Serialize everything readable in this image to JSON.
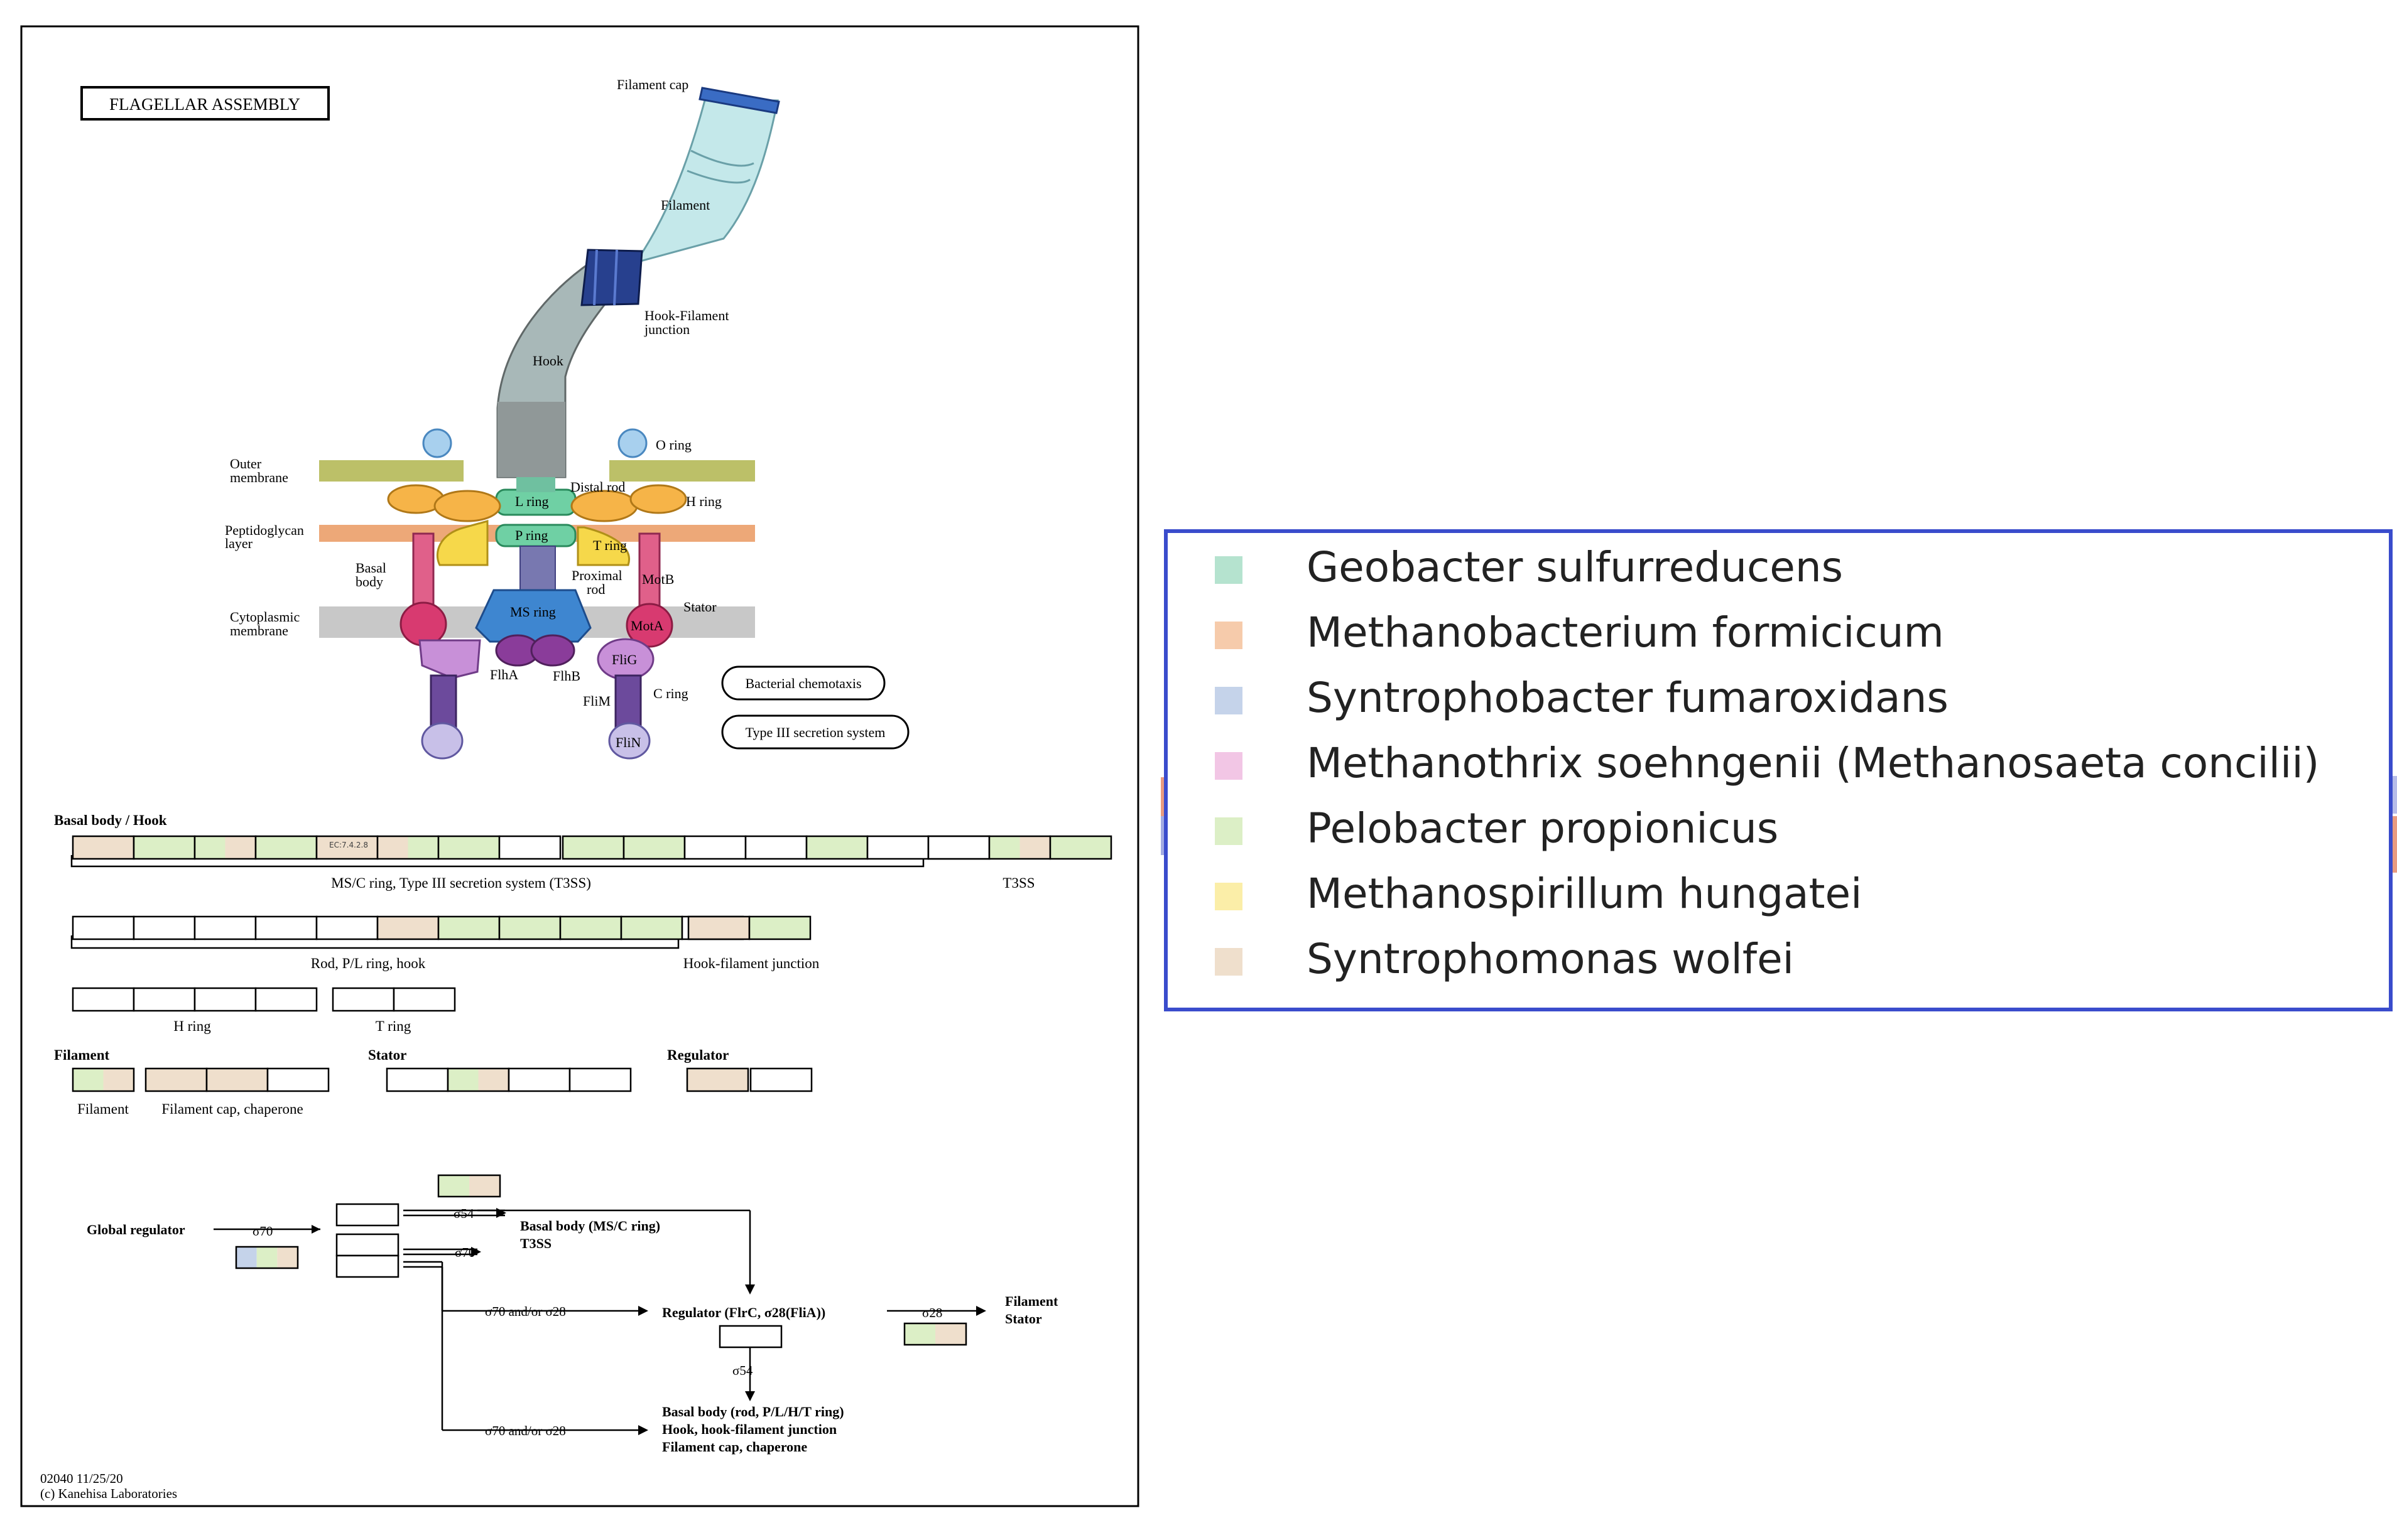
{
  "colors": {
    "geobacter": "#b5e3cf",
    "methanobacterium": "#f6cbab",
    "syntrophobacter": "#c5d3ea",
    "methanothrix": "#f2c6e5",
    "pelobacter": "#dcefc6",
    "methanospirillum": "#fbeea8",
    "syntrophomonas": "#efdfcc",
    "stripe_blue": "#4858c8",
    "stripe_red": "#e0704a"
  },
  "diagram": {
    "title": "FLAGELLAR ASSEMBLY",
    "structure_labels": {
      "filament_cap": "Filament cap",
      "filament": "Filament",
      "hook_filament_junction_1": "Hook-Filament",
      "hook_filament_junction_2": "junction",
      "hook": "Hook",
      "o_ring": "O ring",
      "outer_membrane_1": "Outer",
      "outer_membrane_2": "membrane",
      "distal_rod": "Distal rod",
      "l_ring": "L ring",
      "h_ring": "H ring",
      "peptidoglycan_1": "Peptidoglycan",
      "peptidoglycan_2": "layer",
      "p_ring": "P ring",
      "t_ring": "T ring",
      "basal_body_1": "Basal",
      "basal_body_2": "body",
      "proximal_rod_1": "Proximal",
      "proximal_rod_2": "rod",
      "motb": "MotB",
      "cytoplasmic_1": "Cytoplasmic",
      "cytoplasmic_2": "membrane",
      "ms_ring": "MS ring",
      "stator": "Stator",
      "mota": "MotA",
      "flha": "FlhA",
      "flhb": "FlhB",
      "flig": "FliG",
      "flim": "FliM",
      "c_ring": "C ring",
      "flin": "FliN"
    },
    "pathway_links": [
      "Bacterial chemotaxis",
      "Type III secretion system"
    ],
    "sections": {
      "basal_body_hook": "Basal body / Hook",
      "filament": "Filament",
      "stator": "Stator",
      "regulator": "Regulator"
    },
    "group_labels": {
      "msc_ring": "MS/C ring, Type III secretion system (T3SS)",
      "t3ss": "T3SS",
      "rod_pl": "Rod, P/L ring, hook",
      "hook_filament_junction": "Hook-filament junction",
      "h_ring": "H ring",
      "t_ring": "T ring",
      "filament": "Filament",
      "filament_cap": "Filament cap, chaperone"
    },
    "ec_label": "EC:7.4.2.8",
    "regulation": {
      "global_regulator": "Global regulator",
      "sigma70": "σ70",
      "sigma54": "σ54",
      "sigma28": "σ28",
      "sigma70_or_28": "σ70 and/or σ28",
      "basal_msc_1": "Basal body (MS/C ring)",
      "basal_msc_2": "T3SS",
      "regulator_line": "Regulator (FlrC, σ28(FliA))",
      "filament_stator_1": "Filament",
      "filament_stator_2": "Stator",
      "basal_rod_1": "Basal body (rod, P/L/H/T ring)",
      "basal_rod_2": "Hook, hook-filament junction",
      "basal_rod_3": "Filament cap, chaperone"
    },
    "footer_1": "02040 11/25/20",
    "footer_2": "(c) Kanehisa Laboratories"
  },
  "legend": {
    "items": [
      {
        "label": "Geobacter sulfurreducens",
        "color": "#b5e3cf"
      },
      {
        "label": "Methanobacterium formicicum",
        "color": "#f6cbab"
      },
      {
        "label": "Syntrophobacter fumaroxidans",
        "color": "#c5d3ea"
      },
      {
        "label": "Methanothrix soehngenii (Methanosaeta concilii)",
        "color": "#f2c6e5"
      },
      {
        "label": "Pelobacter propionicus",
        "color": "#dcefc6"
      },
      {
        "label": "Methanospirillum hungatei",
        "color": "#fbeea8"
      },
      {
        "label": "Syntrophomonas wolfei",
        "color": "#efdfcc"
      }
    ]
  },
  "gene_rows": [
    {
      "id": "row1a",
      "boxes": [
        [
          "s"
        ],
        [
          "p"
        ],
        [
          "p",
          "s"
        ],
        [
          "p"
        ],
        [
          "s"
        ],
        [
          "s",
          "p"
        ],
        [
          "p"
        ],
        [
          "w"
        ],
        [
          "p"
        ],
        [
          "p"
        ],
        [
          "w"
        ],
        [
          "w"
        ],
        [
          "p"
        ],
        [
          "w"
        ],
        [
          "s"
        ]
      ]
    },
    {
      "id": "row1b",
      "boxes": [
        [
          "w"
        ],
        [
          "p",
          "s"
        ],
        [
          "p"
        ]
      ]
    },
    {
      "id": "row2a",
      "boxes": [
        [
          "w"
        ],
        [
          "w"
        ],
        [
          "w"
        ],
        [
          "w"
        ],
        [
          "w"
        ],
        [
          "s"
        ],
        [
          "p"
        ],
        [
          "p"
        ],
        [
          "p"
        ],
        [
          "p"
        ],
        [
          "w"
        ]
      ]
    },
    {
      "id": "row2b",
      "boxes": [
        [
          "s"
        ],
        [
          "p"
        ]
      ]
    },
    {
      "id": "row3a",
      "boxes": [
        [
          "w"
        ],
        [
          "w"
        ],
        [
          "w"
        ],
        [
          "w"
        ]
      ]
    },
    {
      "id": "row3b",
      "boxes": [
        [
          "w"
        ],
        [
          "w"
        ]
      ]
    },
    {
      "id": "row4a",
      "boxes": [
        [
          "p",
          "s"
        ]
      ]
    },
    {
      "id": "row4b",
      "boxes": [
        [
          "s"
        ],
        [
          "s"
        ],
        [
          "w"
        ]
      ]
    },
    {
      "id": "row4c",
      "boxes": [
        [
          "w"
        ],
        [
          "p"
        ],
        [
          "p",
          "s"
        ],
        [
          "w"
        ],
        [
          "w"
        ]
      ]
    },
    {
      "id": "row4d",
      "boxes": [
        [
          "s"
        ],
        [
          "w"
        ],
        [
          "w"
        ],
        [
          "w"
        ]
      ]
    }
  ]
}
